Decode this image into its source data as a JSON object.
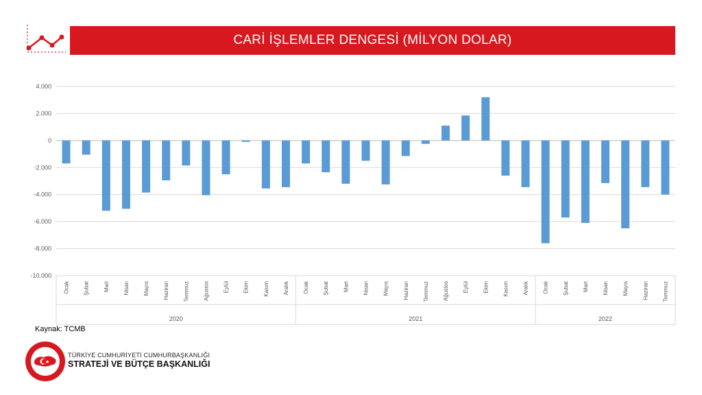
{
  "header": {
    "title": "CARİ İŞLEMLER DENGESİ (MİLYON DOLAR)"
  },
  "source": "Kaynak: TCMB",
  "org": {
    "line1": "TÜRKİYE CUMHURİYETİ CUMHURBAŞKANLIĞI",
    "line2": "STRATEJİ VE BÜTÇE BAŞKANLIĞI"
  },
  "colors": {
    "bar": "#5b9bd5",
    "title_bg": "#d7191f",
    "grid": "#d9d9d9",
    "axis": "#bfbfbf"
  },
  "chart_data": {
    "type": "bar",
    "ylim": [
      -10000,
      4000
    ],
    "yticks": [
      "4.000",
      "2.000",
      "0",
      "-2.000",
      "-4.000",
      "-6.000",
      "-8.000",
      "-10.000"
    ],
    "grid": true,
    "categories": [
      "Ocak",
      "Şubat",
      "Mart",
      "Nisan",
      "Mayıs",
      "Haziran",
      "Temmuz",
      "Ağustos",
      "Eylül",
      "Ekim",
      "Kasım",
      "Aralık",
      "Ocak",
      "Şubat",
      "Mart",
      "Nisan",
      "Mayıs",
      "Haziran",
      "Temmuz",
      "Ağustos",
      "Eylül",
      "Ekim",
      "Kasım",
      "Aralık",
      "Ocak",
      "Şubat",
      "Mart",
      "Nisan",
      "Mayıs",
      "Haziran",
      "Temmuz"
    ],
    "groups": [
      {
        "label": "2020",
        "count": 12
      },
      {
        "label": "2021",
        "count": 12
      },
      {
        "label": "2022",
        "count": 7
      }
    ],
    "values": [
      -1700,
      -1050,
      -5200,
      -5050,
      -3850,
      -2950,
      -1850,
      -4050,
      -2500,
      -100,
      -3550,
      -3450,
      -1700,
      -2350,
      -3200,
      -1500,
      -3250,
      -1150,
      -250,
      1100,
      1850,
      3200,
      -2600,
      -3450,
      -7600,
      -5700,
      -6100,
      -3150,
      -6500,
      -3450,
      -4000
    ]
  }
}
